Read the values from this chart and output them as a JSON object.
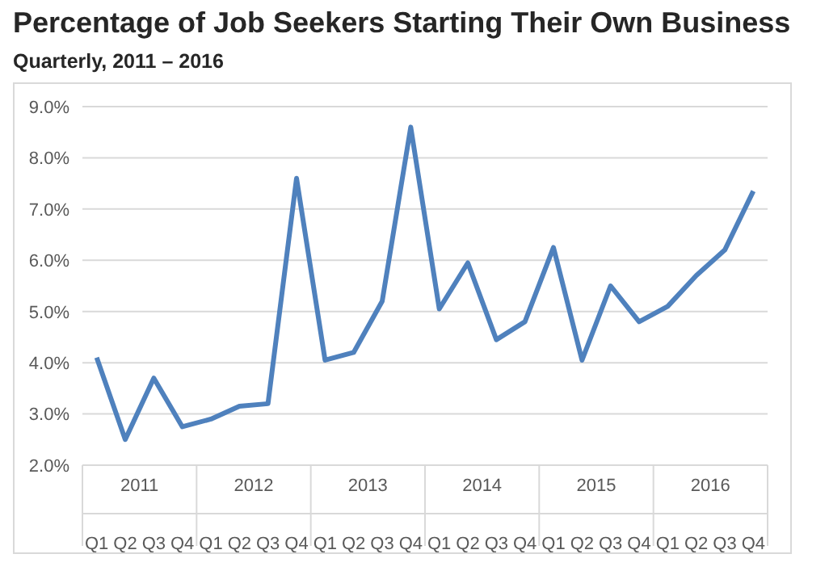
{
  "chart_data": {
    "type": "line",
    "title": "Percentage of Job Seekers Starting Their Own Business",
    "subtitle": "Quarterly, 2011 – 2016",
    "categories": [
      "Q1",
      "Q2",
      "Q3",
      "Q4",
      "Q1",
      "Q2",
      "Q3",
      "Q4",
      "Q1",
      "Q2",
      "Q3",
      "Q4",
      "Q1",
      "Q2",
      "Q3",
      "Q4",
      "Q1",
      "Q2",
      "Q3",
      "Q4",
      "Q1",
      "Q2",
      "Q3",
      "Q4"
    ],
    "annotations": [
      "2011",
      "2012",
      "2013",
      "2014",
      "2015",
      "2016"
    ],
    "series": [
      {
        "color": "#4f81bd",
        "values": [
          4.1,
          2.5,
          3.7,
          2.75,
          2.9,
          3.15,
          3.2,
          7.6,
          4.05,
          4.2,
          5.2,
          8.6,
          5.05,
          5.95,
          4.45,
          4.8,
          6.25,
          4.05,
          5.5,
          4.8,
          5.1,
          5.7,
          6.2,
          7.35
        ]
      }
    ],
    "ylim": [
      2,
      9
    ],
    "yticks": [
      {
        "value": 2,
        "label": "2.0%"
      },
      {
        "value": 3,
        "label": "3.0%"
      },
      {
        "value": 4,
        "label": "4.0%"
      },
      {
        "value": 5,
        "label": "5.0%"
      },
      {
        "value": 6,
        "label": "6.0%"
      },
      {
        "value": 7,
        "label": "7.0%"
      },
      {
        "value": 8,
        "label": "8.0%"
      },
      {
        "value": 9,
        "label": "9.0%"
      }
    ],
    "grid": "y",
    "legend": false,
    "marker": "none",
    "line_style": "solid"
  }
}
